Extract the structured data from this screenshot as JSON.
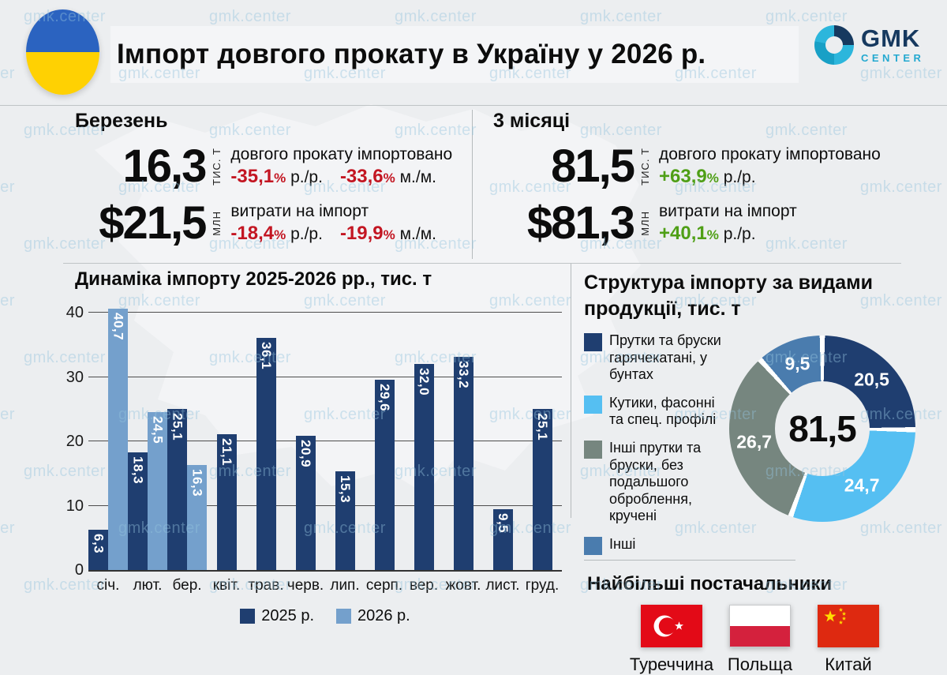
{
  "watermark": {
    "text": "gmk.center"
  },
  "header": {
    "title": "Імпорт довгого прокату в Україну у 2026 р.",
    "logo": {
      "brand": "GMK",
      "sub": "CENTER"
    }
  },
  "stats": {
    "left": {
      "heading": "Березень",
      "rows": [
        {
          "value": "16,3",
          "unit": "тис. т",
          "desc": "довгого прокату імпортовано",
          "changes": [
            {
              "num": "-35,1",
              "sign": "%",
              "suffix": "р./р.",
              "dir": "down"
            },
            {
              "num": "-33,6",
              "sign": "%",
              "suffix": "м./м.",
              "dir": "down"
            }
          ]
        },
        {
          "value": "$21,5",
          "unit": "млн",
          "desc": "витрати на імпорт",
          "changes": [
            {
              "num": "-18,4",
              "sign": "%",
              "suffix": "р./р.",
              "dir": "down"
            },
            {
              "num": "-19,9",
              "sign": "%",
              "suffix": "м./м.",
              "dir": "down"
            }
          ]
        }
      ]
    },
    "right": {
      "heading": "3 місяці",
      "rows": [
        {
          "value": "81,5",
          "unit": "тис. т",
          "desc": "довгого прокату імпортовано",
          "changes": [
            {
              "num": "+63,9",
              "sign": "%",
              "suffix": "р./р.",
              "dir": "up"
            }
          ]
        },
        {
          "value": "$81,3",
          "unit": "млн",
          "desc": "витрати на імпорт",
          "changes": [
            {
              "num": "+40,1",
              "sign": "%",
              "suffix": "р./р.",
              "dir": "up"
            }
          ]
        }
      ]
    }
  },
  "chart_data": [
    {
      "type": "bar",
      "title": "Динаміка імпорту 2025-2026 рр., тис. т",
      "categories": [
        "січ.",
        "лют.",
        "бер.",
        "квіт.",
        "трав.",
        "черв.",
        "лип.",
        "серп.",
        "вер.",
        "жовт.",
        "лист.",
        "груд."
      ],
      "series": [
        {
          "name": "2025 р.",
          "color": "#1f3e70",
          "values": [
            6.3,
            18.3,
            25.1,
            21.1,
            36.1,
            20.9,
            15.3,
            29.6,
            32.0,
            33.2,
            9.5,
            25.1
          ],
          "labels": [
            "6,3",
            "18,3",
            "25,1",
            "21,1",
            "36,1",
            "20,9",
            "15,3",
            "29,6",
            "32,0",
            "33,2",
            "9,5",
            "25,1"
          ]
        },
        {
          "name": "2026 р.",
          "color": "#74a0cc",
          "values": [
            40.7,
            24.5,
            16.3,
            null,
            null,
            null,
            null,
            null,
            null,
            null,
            null,
            null
          ],
          "labels": [
            "40,7",
            "24,5",
            "16,3",
            null,
            null,
            null,
            null,
            null,
            null,
            null,
            null,
            null
          ]
        }
      ],
      "xlabel": "",
      "ylabel": "",
      "yticks": [
        0,
        10,
        20,
        30,
        40
      ],
      "ylim": [
        0,
        40
      ],
      "grid": true,
      "legend_position": "bottom"
    },
    {
      "type": "pie",
      "subtype": "donut",
      "title": "Структура імпорту за видами продукції, тис. т",
      "center_label": "81,5",
      "slices": [
        {
          "label": "Прутки та бруски гарячекатані, у бунтах",
          "value": 20.5,
          "display": "20,5",
          "color": "#1f3e70"
        },
        {
          "label": "Кутики, фасонні та спец. профілі",
          "value": 24.7,
          "display": "24,7",
          "color": "#55bff2"
        },
        {
          "label": "Інші прутки та бруски, без подальшого оброблення, кручені",
          "value": 26.7,
          "display": "26,7",
          "color": "#76867f"
        },
        {
          "label": "Інші",
          "value": 9.5,
          "display": "9,5",
          "color": "#4a7cae"
        }
      ],
      "legend_position": "left"
    }
  ],
  "suppliers": {
    "heading": "Найбільші постачальники",
    "items": [
      {
        "name": "Туреччина",
        "flag": "turkey-flag"
      },
      {
        "name": "Польща",
        "flag": "poland-flag"
      },
      {
        "name": "Китай",
        "flag": "china-flag"
      }
    ]
  }
}
